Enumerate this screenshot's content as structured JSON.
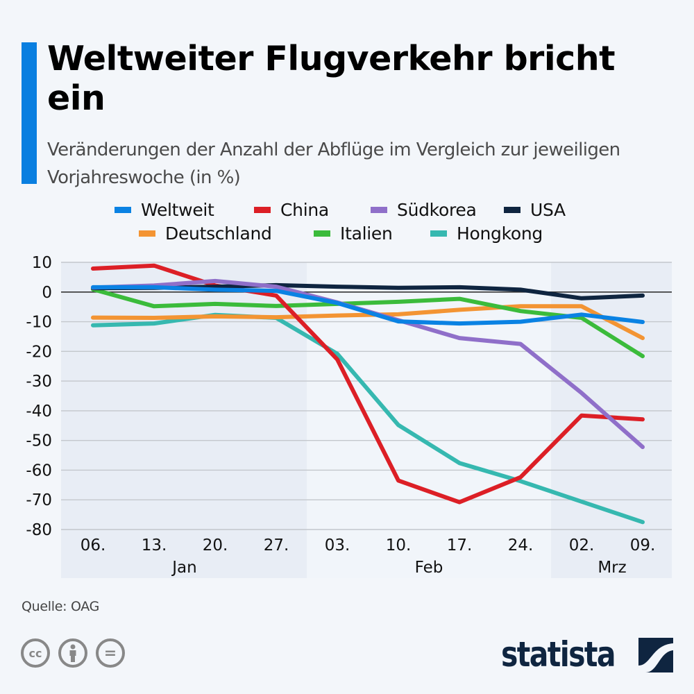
{
  "header": {
    "title": "Weltweiter Flugverkehr bricht ein",
    "subtitle": "Veränderungen der Anzahl der Abflüge im Vergleich zur jeweiligen Vorjahreswoche (in %)",
    "accent_color": "#0a7fe0"
  },
  "chart_data": {
    "type": "line",
    "title": "Weltweiter Flugverkehr bricht ein",
    "subtitle": "Veränderungen der Anzahl der Abflüge im Vergleich zur jeweiligen Vorjahreswoche (in %)",
    "xlabel": "",
    "ylabel": "",
    "x": [
      "06.",
      "13.",
      "20.",
      "27.",
      "03.",
      "10.",
      "17.",
      "24.",
      "02.",
      "09."
    ],
    "month_groups": [
      {
        "label": "Jan",
        "from": 0,
        "to": 3,
        "shaded": true
      },
      {
        "label": "Feb",
        "from": 4,
        "to": 7,
        "shaded": false
      },
      {
        "label": "Mrz",
        "from": 8,
        "to": 9,
        "shaded": true
      }
    ],
    "ylim": [
      -80,
      10
    ],
    "yticks": [
      10,
      0,
      -10,
      -20,
      -30,
      -40,
      -50,
      -60,
      -70,
      -80
    ],
    "grid": true,
    "legend_position": "top",
    "series": [
      {
        "name": "Weltweit",
        "color": "#0a82e3",
        "values": [
          1.6,
          1.6,
          0.8,
          0.4,
          -3.7,
          -9.9,
          -10.6,
          -10.0,
          -7.6,
          -10.1
        ]
      },
      {
        "name": "China",
        "color": "#dc1f26",
        "values": [
          7.9,
          8.9,
          2.2,
          -1.2,
          -22.7,
          -63.5,
          -70.8,
          -62.4,
          -41.6,
          -42.9
        ]
      },
      {
        "name": "Südkorea",
        "color": "#8f6fc9",
        "values": [
          1.5,
          2.2,
          3.7,
          1.8,
          -3.5,
          -9.5,
          -15.5,
          -17.5,
          -34.0,
          -52.2
        ]
      },
      {
        "name": "USA",
        "color": "#0f2540",
        "values": [
          1.3,
          1.4,
          1.8,
          2.3,
          1.8,
          1.4,
          1.6,
          0.8,
          -2.1,
          -1.2
        ]
      },
      {
        "name": "Deutschland",
        "color": "#f39433",
        "values": [
          -8.6,
          -8.7,
          -8.2,
          -8.5,
          -7.9,
          -7.5,
          -6.0,
          -4.8,
          -4.8,
          -15.5
        ]
      },
      {
        "name": "Italien",
        "color": "#3bbb3b",
        "values": [
          0.9,
          -4.8,
          -4.0,
          -4.7,
          -4.0,
          -3.3,
          -2.3,
          -6.4,
          -8.7,
          -21.6
        ]
      },
      {
        "name": "Hongkong",
        "color": "#36b8b0",
        "values": [
          -11.2,
          -10.6,
          -7.7,
          -8.7,
          -20.8,
          -44.8,
          -57.6,
          -63.7,
          -70.6,
          -77.5
        ]
      }
    ]
  },
  "legend": {
    "row1": [
      "Weltweit",
      "China",
      "Südkorea",
      "USA"
    ],
    "row2": [
      "Deutschland",
      "Italien",
      "Hongkong"
    ]
  },
  "footer": {
    "source": "Quelle: OAG",
    "license_icons": [
      "cc-icon",
      "attribution-icon",
      "no-derivatives-icon"
    ],
    "cc_label": "cc",
    "nd_label": "=",
    "brand": "statista"
  }
}
